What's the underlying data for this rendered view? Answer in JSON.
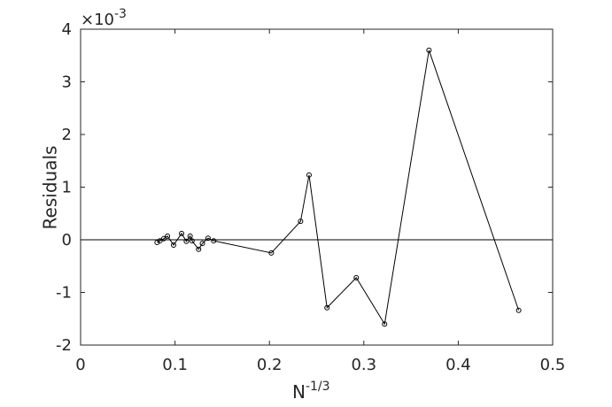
{
  "chart_data": {
    "type": "line",
    "xlabel": "N",
    "xlabel_sup": "-1/3",
    "ylabel": "Residuals",
    "y_multiplier": "×10",
    "y_multiplier_exp": "-3",
    "xlim": [
      0,
      0.5
    ],
    "xticks": [
      0,
      0.1,
      0.2,
      0.3,
      0.4,
      0.5
    ],
    "ylim": [
      -2,
      4
    ],
    "yticks": [
      -2,
      -1,
      0,
      1,
      2,
      3,
      4
    ],
    "hline": 0,
    "color": "#000000",
    "x": [
      0.081,
      0.084,
      0.088,
      0.092,
      0.0985,
      0.107,
      0.112,
      0.116,
      0.118,
      0.125,
      0.129,
      0.135,
      0.141,
      0.202,
      0.233,
      0.242,
      0.261,
      0.292,
      0.322,
      0.369,
      0.464
    ],
    "values": [
      -0.05,
      -0.02,
      0.02,
      0.07,
      -0.1,
      0.12,
      -0.03,
      0.07,
      -0.02,
      -0.18,
      -0.07,
      0.03,
      -0.02,
      -0.25,
      0.35,
      1.23,
      -1.29,
      -0.72,
      -1.6,
      3.6,
      -1.34
    ]
  }
}
